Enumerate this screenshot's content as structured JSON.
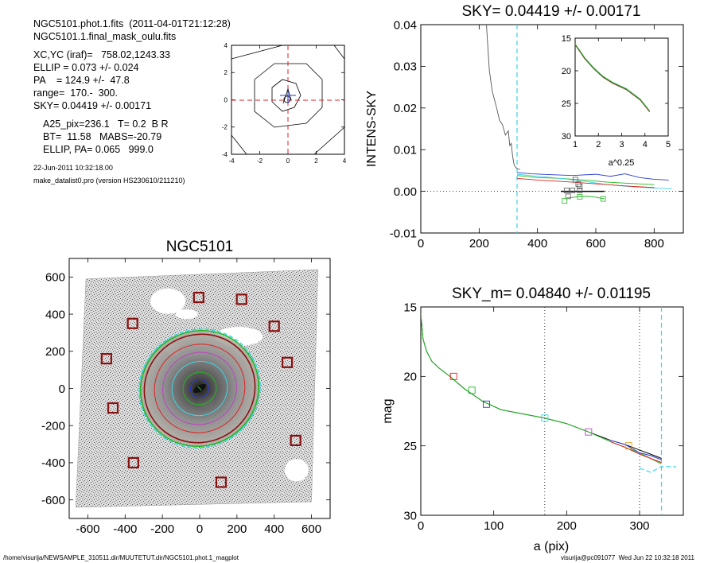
{
  "header": {
    "line1": "NGC5101.phot.1.fits  (2011-04-01T21:12:28)",
    "line2": "NGC5101.1.final_mask_oulu.fits",
    "line3": "XC,YC (iraf)=   758.02,1243.33",
    "line4": "ELLIP = 0.073 +/- 0.024",
    "line5": "PA    = 124.9 +/-  47.8",
    "line6": "range=  170.-  300.",
    "line7": "SKY= 0.04419 +/- 0.00171",
    "line8": "A25_pix=236.1   T= 0.2  B R",
    "line9": "BT=  11.58   MABS=-20.79",
    "line10": "ELLIP, PA= 0.065   999.0",
    "date": "22-Jun-2011 10:32:18.00",
    "prog": "make_datalist0.pro (version HS230610/211210)"
  },
  "footer": {
    "left": "/home/visurija/NEWSAMPLE_310511.dir/MUUTETUT.dir/NGC5101.phot.1_magplot",
    "right": "visurija@pc091077  Wed Jun 22 10:32:18 2011"
  },
  "colors": {
    "cyan": "#3ad6e6",
    "blue": "#2a3ad0",
    "green": "#22b822",
    "red": "#e02020",
    "darkred": "#8a1010",
    "gray": "#555555",
    "magenta": "#c040c0"
  },
  "chart_data": [
    {
      "id": "center-contour",
      "type": "line",
      "title": "",
      "xlim": [
        -4,
        4
      ],
      "ylim": [
        -4,
        4
      ],
      "xticks": [
        -4,
        -2,
        0,
        2,
        4
      ],
      "yticks": [
        -4,
        -2,
        0,
        2,
        4
      ],
      "xticklabels": [
        "-4",
        "-2",
        "0",
        "2",
        "4"
      ],
      "yticklabels": [
        "-4",
        "-2",
        "0",
        "2",
        "4"
      ]
    },
    {
      "id": "sky-profile",
      "type": "line",
      "title": "SKY= 0.04419 +/- 0.00171",
      "xlabel": "",
      "ylabel": "INTENS-SKY",
      "xlim": [
        0,
        900
      ],
      "ylim": [
        -0.01,
        0.04
      ],
      "xticks": [
        0,
        200,
        400,
        600,
        800
      ],
      "yticks": [
        -0.01,
        0,
        0.01,
        0.02,
        0.03,
        0.04
      ],
      "xticklabels": [
        "0",
        "200",
        "400",
        "600",
        "800"
      ],
      "yticklabels": [
        "-0.01",
        "0.00",
        "0.01",
        "0.02",
        "0.03",
        "0.04"
      ],
      "vline": 330,
      "series": [
        {
          "color": "#555555",
          "x": [
            225,
            235,
            245,
            260,
            270,
            280,
            290,
            300,
            305,
            310,
            315,
            320,
            325,
            330,
            340
          ],
          "y": [
            0.04,
            0.029,
            0.024,
            0.02,
            0.017,
            0.016,
            0.0135,
            0.0145,
            0.011,
            0.0115,
            0.0083,
            0.0063,
            0.0058,
            0.0055,
            0.0052
          ]
        },
        {
          "color": "#2a3ad0",
          "x": [
            330,
            380,
            450,
            520,
            600,
            650,
            700,
            750,
            800,
            850
          ],
          "y": [
            0.0045,
            0.0042,
            0.004,
            0.0038,
            0.0041,
            0.0036,
            0.0042,
            0.0033,
            0.0029,
            0.0027
          ]
        },
        {
          "color": "#22b822",
          "x": [
            330,
            400,
            480,
            560,
            640,
            720,
            800
          ],
          "y": [
            0.0038,
            0.0033,
            0.0031,
            0.0027,
            0.0022,
            0.0019,
            0.0016
          ]
        },
        {
          "color": "#3ad6e6",
          "x": [
            330,
            400,
            480,
            560,
            640,
            720,
            800,
            860
          ],
          "y": [
            0.0041,
            0.0036,
            0.0031,
            0.0024,
            0.0016,
            0.0011,
            0.0008,
            0.0006
          ]
        },
        {
          "color": "#e02020",
          "x": [
            330,
            400,
            500,
            600,
            700,
            800
          ],
          "y": [
            0.0031,
            0.0027,
            0.0023,
            0.0018,
            0.0013,
            0.0009
          ]
        },
        {
          "color": "#000000",
          "x": [
            480,
            630
          ],
          "y": [
            0.0,
            0.0
          ]
        },
        {
          "color": "#22b822",
          "x": [
            500,
            540,
            570,
            600,
            630
          ],
          "y": [
            -0.0016,
            -0.0013,
            -0.0012,
            -0.0014,
            -0.0018
          ]
        }
      ],
      "markers": [
        {
          "x": 530,
          "y": 0.0028,
          "color": "#555555"
        },
        {
          "x": 540,
          "y": 0.0017,
          "color": "#555555"
        },
        {
          "x": 545,
          "y": 0.0012,
          "color": "#555555"
        },
        {
          "x": 500,
          "y": 0.0002,
          "color": "#555555"
        },
        {
          "x": 520,
          "y": 0.0002,
          "color": "#555555"
        },
        {
          "x": 545,
          "y": 0.0002,
          "color": "#555555"
        },
        {
          "x": 505,
          "y": -0.0012,
          "color": "#555555"
        },
        {
          "x": 493,
          "y": -0.0023,
          "color": "#22b822"
        },
        {
          "x": 545,
          "y": -0.0013,
          "color": "#22b822"
        },
        {
          "x": 625,
          "y": -0.0018,
          "color": "#22b822"
        }
      ],
      "inset": {
        "xlabel": "a^0.25",
        "xlim": [
          1,
          5
        ],
        "ylim": [
          15,
          30
        ],
        "xticks": [
          1,
          2,
          3,
          4,
          5
        ],
        "yticks": [
          15,
          20,
          25,
          30
        ],
        "xticklabels": [
          "1",
          "2",
          "3",
          "4",
          "5"
        ],
        "yticklabels": [
          "15",
          "20",
          "25",
          "30"
        ],
        "x": [
          1.0,
          1.4,
          1.8,
          2.2,
          2.6,
          2.9,
          3.2,
          3.5,
          3.8,
          4.0,
          4.2
        ],
        "y": [
          16.0,
          18.1,
          19.7,
          21.0,
          21.9,
          22.4,
          22.9,
          23.7,
          24.5,
          25.4,
          26.3
        ]
      }
    },
    {
      "id": "galaxy-image",
      "type": "scatter",
      "title": "NGC5101",
      "xlim": [
        -700,
        700
      ],
      "ylim": [
        -700,
        700
      ],
      "xticks": [
        -600,
        -400,
        -200,
        0,
        200,
        400,
        600
      ],
      "yticks": [
        -600,
        -400,
        -200,
        0,
        200,
        400,
        600
      ],
      "xticklabels": [
        "-600",
        "-400",
        "-200",
        "0",
        "200",
        "400",
        "600"
      ],
      "yticklabels": [
        "-600",
        "-400",
        "-200",
        "0",
        "200",
        "400",
        "600"
      ],
      "sky_boxes": [
        {
          "x": -5,
          "y": 490
        },
        {
          "x": 225,
          "y": 480
        },
        {
          "x": -360,
          "y": 350
        },
        {
          "x": 400,
          "y": 335
        },
        {
          "x": -500,
          "y": 160
        },
        {
          "x": 470,
          "y": 140
        },
        {
          "x": -465,
          "y": -105
        },
        {
          "x": 515,
          "y": -280
        },
        {
          "x": -355,
          "y": -400
        },
        {
          "x": 115,
          "y": -505
        }
      ],
      "isophotes": [
        {
          "a": 300,
          "color": "#8a1010"
        },
        {
          "a": 320,
          "color": "#22b822"
        },
        {
          "a": 328,
          "color": "#3ad6e6"
        },
        {
          "a": 245,
          "color": "#e02020"
        },
        {
          "a": 200,
          "color": "#c040c0"
        },
        {
          "a": 150,
          "color": "#3ad6e6"
        },
        {
          "a": 90,
          "color": "#22b822"
        },
        {
          "a": 50,
          "color": "#2a3ad0"
        }
      ]
    },
    {
      "id": "mag-profile",
      "type": "line",
      "title": "SKY_m=  0.04840 +/- 0.01195",
      "xlabel": "a (pix)",
      "ylabel": "mag",
      "xlim": [
        0,
        360
      ],
      "ylim": [
        15,
        30
      ],
      "xticks": [
        0,
        100,
        200,
        300
      ],
      "yticks": [
        15,
        20,
        25,
        30
      ],
      "xticklabels": [
        "0",
        "100",
        "200",
        "300"
      ],
      "yticklabels": [
        "15",
        "20",
        "25",
        "30"
      ],
      "vlines_dotted": [
        170,
        300
      ],
      "vline": 330,
      "series": [
        {
          "color": "#000000",
          "x": [
            0,
            3,
            8,
            15,
            25,
            40,
            60,
            85,
            110,
            140,
            170,
            200,
            230,
            260,
            280,
            300,
            315,
            330
          ],
          "y": [
            15.5,
            17.3,
            18.2,
            18.9,
            19.4,
            20.0,
            20.9,
            21.8,
            22.4,
            22.7,
            23.0,
            23.4,
            24.0,
            24.6,
            24.9,
            25.3,
            25.6,
            25.9
          ]
        },
        {
          "color": "#22b822",
          "x": [
            0,
            3,
            8,
            15,
            25,
            40,
            60,
            85,
            110,
            140,
            170,
            200,
            230,
            260,
            280,
            300,
            315,
            330
          ],
          "y": [
            15.5,
            17.3,
            18.2,
            18.9,
            19.4,
            20.0,
            20.9,
            21.8,
            22.4,
            22.7,
            23.0,
            23.4,
            24.0,
            24.7,
            25.1,
            25.5,
            25.9,
            26.3
          ]
        },
        {
          "color": "#e02020",
          "x": [
            260,
            280,
            300,
            315,
            330
          ],
          "y": [
            24.7,
            25.1,
            25.6,
            25.9,
            26.2
          ]
        },
        {
          "color": "#2a3ad0",
          "x": [
            260,
            280,
            300,
            315,
            330
          ],
          "y": [
            24.6,
            24.9,
            25.5,
            25.7,
            26.0
          ]
        }
      ],
      "sky_segment": {
        "x": [
          300,
          315,
          330,
          350
        ],
        "y": [
          26.6,
          26.9,
          26.5,
          26.5
        ],
        "color": "#3ad6e6"
      },
      "markers": [
        {
          "x": 45,
          "y": 20.0,
          "color": "#e02020"
        },
        {
          "x": 70,
          "y": 21.0,
          "color": "#22b822"
        },
        {
          "x": 90,
          "y": 22.0,
          "color": "#2a3ad0"
        },
        {
          "x": 170,
          "y": 23.0,
          "color": "#3ad6e6"
        },
        {
          "x": 230,
          "y": 24.0,
          "color": "#c040c0"
        },
        {
          "x": 285,
          "y": 25.0,
          "color": "#e0a020"
        }
      ]
    }
  ]
}
